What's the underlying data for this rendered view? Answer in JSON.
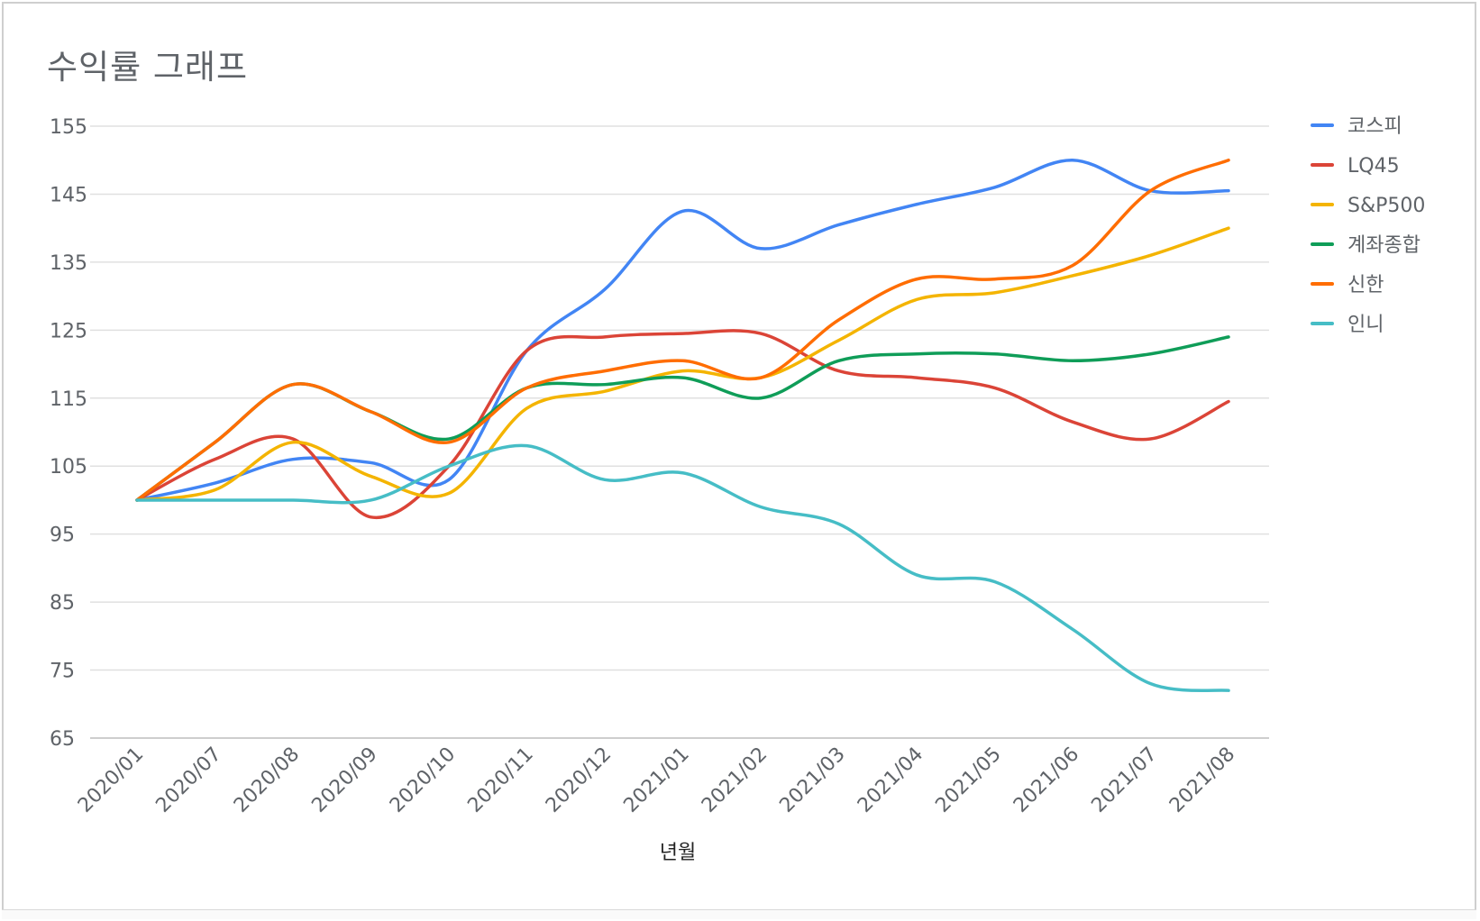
{
  "chart_data": {
    "type": "line",
    "title": "수익률 그래프",
    "xlabel": "년월",
    "ylabel": "",
    "ylim": [
      65,
      155
    ],
    "yticks": [
      65,
      75,
      85,
      95,
      105,
      115,
      125,
      135,
      145,
      155
    ],
    "grid": true,
    "legend_position": "right",
    "categories": [
      "2020/01",
      "2020/07",
      "2020/08",
      "2020/09",
      "2020/10",
      "2020/11",
      "2020/12",
      "2021/01",
      "2021/02",
      "2021/03",
      "2021/04",
      "2021/05",
      "2021/06",
      "2021/07",
      "2021/08"
    ],
    "series": [
      {
        "name": "코스피",
        "color": "#4285f4",
        "values": [
          100,
          102.5,
          106,
          105.5,
          103,
          122,
          131,
          142.5,
          137,
          140.5,
          143.5,
          146,
          150,
          145.5,
          145.5
        ]
      },
      {
        "name": "LQ45",
        "color": "#db4437",
        "values": [
          100,
          106,
          109,
          97.5,
          105,
          122,
          124,
          124.5,
          124.5,
          119,
          118,
          116.5,
          111.5,
          109,
          114.5
        ]
      },
      {
        "name": "S&P500",
        "color": "#f4b400",
        "values": [
          100,
          101.5,
          108.5,
          103.5,
          101,
          113.5,
          116,
          119,
          118,
          123.5,
          129.5,
          130.5,
          133,
          136,
          140
        ]
      },
      {
        "name": "계좌종합",
        "color": "#0f9d58",
        "values": [
          100,
          108.5,
          117,
          113,
          109,
          116.5,
          117,
          118,
          115,
          120.5,
          121.5,
          121.5,
          120.5,
          121.5,
          124
        ]
      },
      {
        "name": "신한",
        "color": "#ff6d01",
        "values": [
          100,
          108.5,
          117,
          113,
          108.5,
          116.5,
          119,
          120.5,
          118,
          126.5,
          132.5,
          132.5,
          134.5,
          145.5,
          150
        ]
      },
      {
        "name": "인니",
        "color": "#46bdc6",
        "values": [
          100,
          100,
          100,
          100,
          105,
          108,
          103,
          104,
          99,
          96.5,
          89,
          88,
          81,
          73,
          72
        ]
      }
    ]
  }
}
